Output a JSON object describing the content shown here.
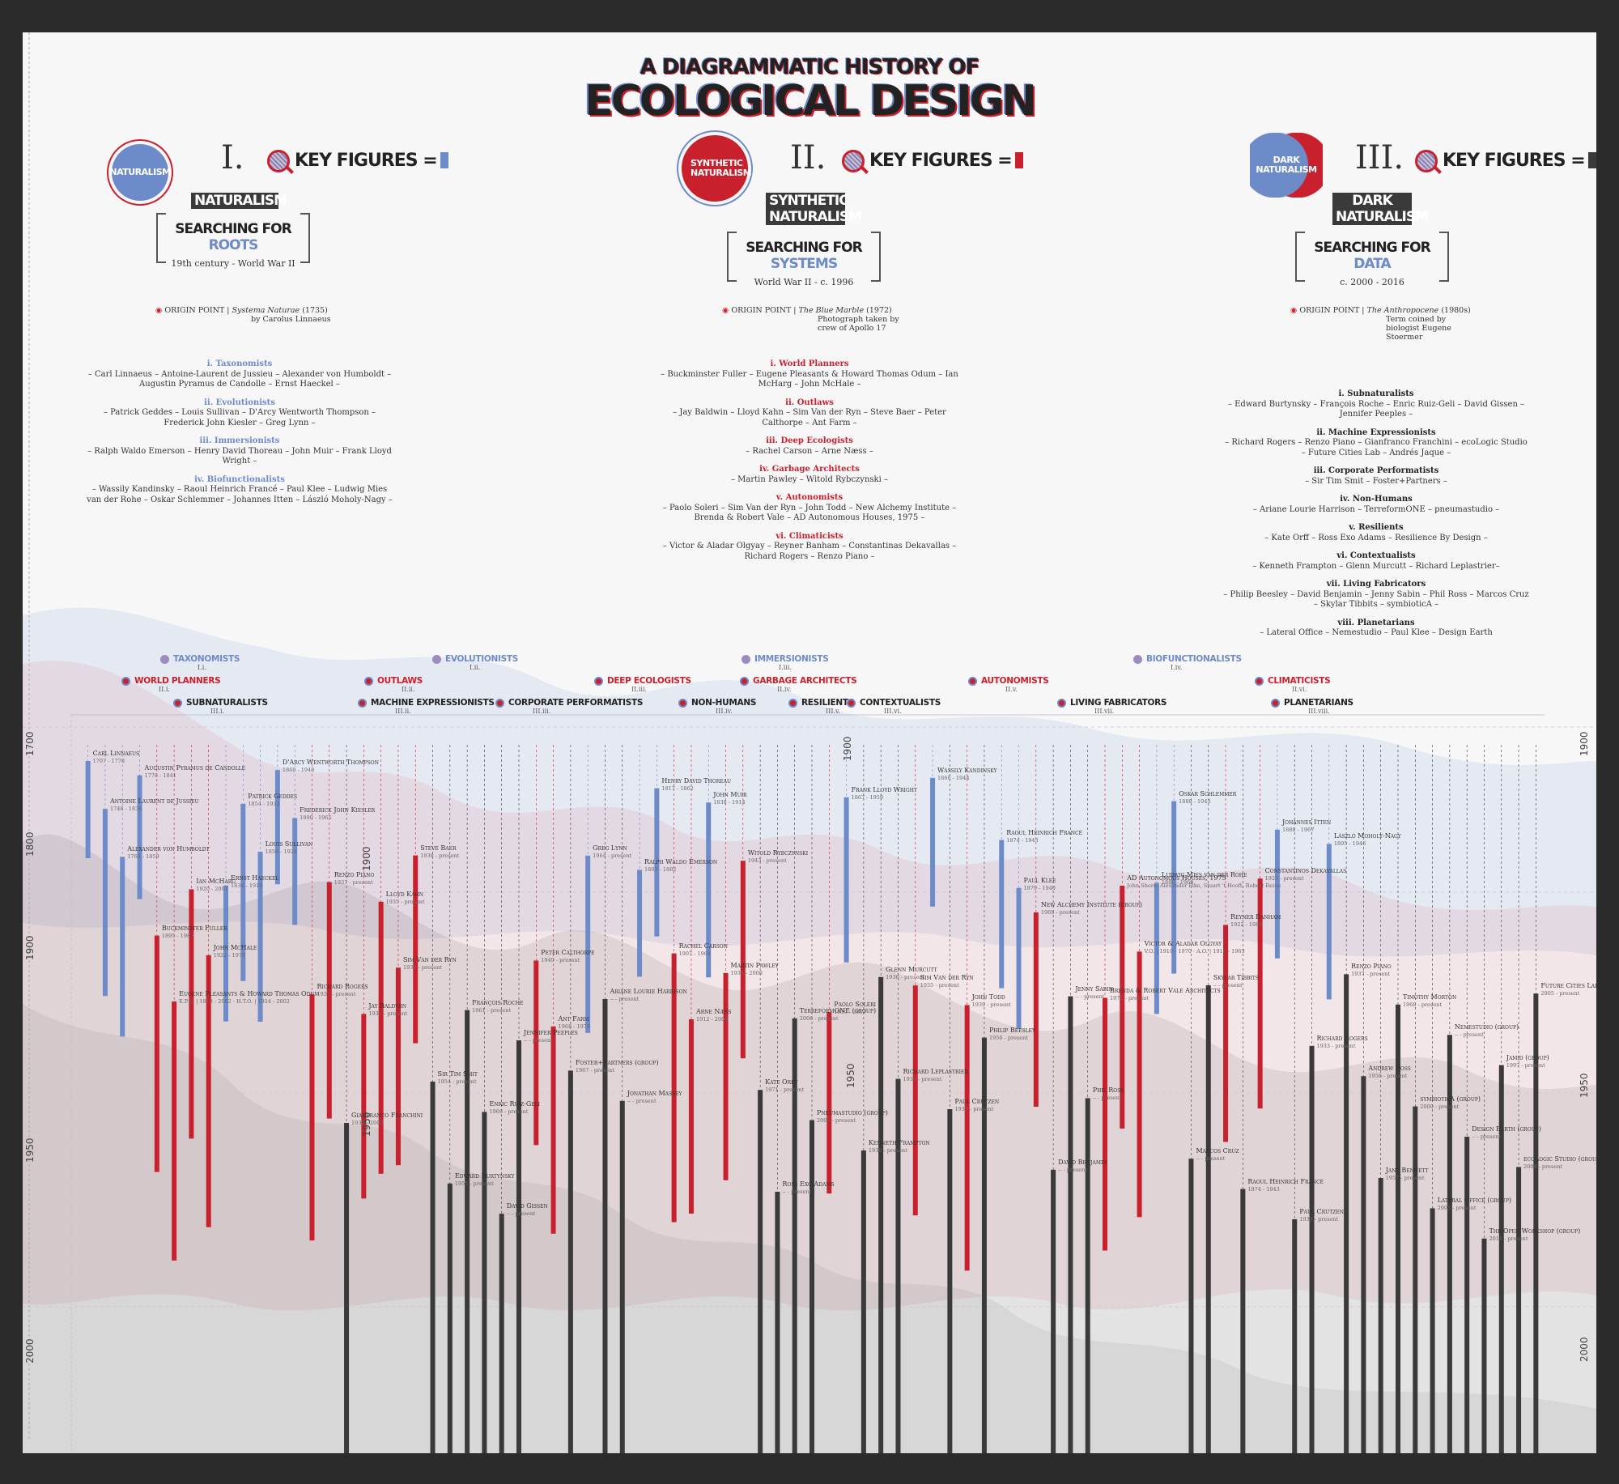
{
  "title": {
    "line1": "A DIAGRAMMATIC HISTORY OF",
    "line2": "ECOLOGICAL DESIGN"
  },
  "colors": {
    "blue": "#6e8bc9",
    "red": "#c9202e",
    "dark": "#3a3a3a",
    "bg": "#f7f7f8"
  },
  "eras": [
    {
      "numeral": "I.",
      "emblem": "NATURALISM",
      "key_figures": "KEY FIGURES =",
      "name_lines": [
        "NATURALISM"
      ],
      "search_prefix": "SEARCHING FOR ",
      "search_word": "ROOTS",
      "dates": "19th century - World War II",
      "origin_label": "ORIGIN POINT",
      "origin_work": "Systema Naturae",
      "origin_rest": "(1735)",
      "origin_detail": "by Carolus Linnaeus",
      "categories": [
        {
          "title": "i. Taxonomists",
          "members": "– Carl Linnaeus – Antoine-Laurent de Jussieu – Alexander von Humboldt – Augustin Pyramus de Candolle – Ernst Haeckel –"
        },
        {
          "title": "ii. Evolutionists",
          "members": "– Patrick Geddes – Louis Sullivan – D'Arcy Wentworth Thompson – Frederick John Kiesler – Greg Lynn –"
        },
        {
          "title": "iii. Immersionists",
          "members": "– Ralph Waldo Emerson – Henry David Thoreau – John Muir – Frank Lloyd Wright –"
        },
        {
          "title": "iv. Biofunctionalists",
          "members": "– Wassily Kandinsky – Raoul Heinrich Francé – Paul Klee – Ludwig Mies van der Rohe – Oskar Schlemmer – Johannes Itten – László Moholy-Nagy –"
        }
      ]
    },
    {
      "numeral": "II.",
      "emblem": "SYNTHETIC NATURALISM",
      "key_figures": "KEY FIGURES =",
      "name_lines": [
        "SYNTHETIC",
        "NATURALISM"
      ],
      "search_prefix": "SEARCHING FOR ",
      "search_word": "SYSTEMS",
      "dates": "World War II - c. 1996",
      "origin_label": "ORIGIN POINT",
      "origin_work": "The Blue Marble",
      "origin_rest": "(1972)",
      "origin_detail": "Photograph taken by crew of Apollo 17",
      "categories": [
        {
          "title": "i. World Planners",
          "members": "– Buckminster Fuller – Eugene Pleasants & Howard Thomas Odum – Ian McHarg – John McHale –"
        },
        {
          "title": "ii. Outlaws",
          "members": "– Jay Baldwin – Lloyd Kahn – Sim Van der Ryn – Steve Baer – Peter Calthorpe – Ant Farm –"
        },
        {
          "title": "iii. Deep Ecologists",
          "members": "– Rachel Carson – Arne Næss –"
        },
        {
          "title": "iv. Garbage Architects",
          "members": "– Martin Pawley – Witold Rybczynski –"
        },
        {
          "title": "v. Autonomists",
          "members": "– Paolo Soleri – Sim Van der Ryn – John Todd – New Alchemy Institute – Brenda & Robert Vale – AD Autonomous Houses, 1975 –"
        },
        {
          "title": "vi. Climaticists",
          "members": "– Victor & Aladar Olgyay – Reyner Banham – Constantinas Dekavallas – Richard Rogers – Renzo Piano –"
        }
      ]
    },
    {
      "numeral": "III.",
      "emblem": "DARK NATURALISM",
      "key_figures": "KEY FIGURES =",
      "name_lines": [
        "DARK",
        "NATURALISM"
      ],
      "search_prefix": "SEARCHING FOR ",
      "search_word": "DATA",
      "dates": "c. 2000 - 2016",
      "origin_label": "ORIGIN POINT",
      "origin_work": "The Anthropocene",
      "origin_rest": "(1980s)",
      "origin_detail": "Term coined by biologist Eugene Stoermer",
      "categories": [
        {
          "title": "i. Subnaturalists",
          "members": "– Edward Burtynsky – François Roche – Enric Ruiz-Geli – David Gissen – Jennifer Peeples –"
        },
        {
          "title": "ii. Machine Expressionists",
          "members": "– Richard Rogers – Renzo Piano – Gianfranco Franchini – ecoLogic Studio – Future Cities Lab – Andrés Jaque –"
        },
        {
          "title": "iii. Corporate Performatists",
          "members": "– Sir Tim Smit – Foster+Partners –"
        },
        {
          "title": "iv. Non-Humans",
          "members": "– Ariane Lourie Harrison – TerreformONE – pneumastudio –"
        },
        {
          "title": "v. Resilients",
          "members": "– Kate Orff – Ross Exo Adams – Resilience By Design –"
        },
        {
          "title": "vi. Contextualists",
          "members": "– Kenneth Frampton – Glenn Murcutt – Richard Leplastrier–"
        },
        {
          "title": "vii. Living Fabricators",
          "members": "– Philip Beesley – David Benjamin – Jenny Sabin – Phil Ross – Marcos Cruz – Skylar Tibbits – symbioticA –"
        },
        {
          "title": "viii. Planetarians",
          "members": "– Lateral Office – Nemestudio – Paul Klee – Design Earth"
        }
      ]
    }
  ],
  "annotation_labels": [
    {
      "label": "TAXONOMISTS",
      "sub": "I.i.",
      "era": 1
    },
    {
      "label": "EVOLUTIONISTS",
      "sub": "I.ii.",
      "era": 1
    },
    {
      "label": "IMMERSIONISTS",
      "sub": "I.iii.",
      "era": 1
    },
    {
      "label": "BIOFUNCTIONALISTS",
      "sub": "I.iv.",
      "era": 1
    },
    {
      "label": "WORLD PLANNERS",
      "sub": "II.i.",
      "era": 2
    },
    {
      "label": "OUTLAWS",
      "sub": "II.ii.",
      "era": 2
    },
    {
      "label": "DEEP ECOLOGISTS",
      "sub": "II.iii.",
      "era": 2
    },
    {
      "label": "GARBAGE ARCHITECTS",
      "sub": "II.iv.",
      "era": 2
    },
    {
      "label": "AUTONOMISTS",
      "sub": "II.v.",
      "era": 2
    },
    {
      "label": "CLIMATICISTS",
      "sub": "II.vi.",
      "era": 2
    },
    {
      "label": "SUBNATURALISTS",
      "sub": "III.i.",
      "era": 3
    },
    {
      "label": "MACHINE EXPRESSIONISTS",
      "sub": "III.ii.",
      "era": 3
    },
    {
      "label": "CORPORATE PERFORMATISTS",
      "sub": "III.iii.",
      "era": 3
    },
    {
      "label": "NON-HUMANS",
      "sub": "III.iv.",
      "era": 3
    },
    {
      "label": "RESILIENTS",
      "sub": "III.v.",
      "era": 3
    },
    {
      "label": "CONTEXTUALISTS",
      "sub": "III.vi.",
      "era": 3
    },
    {
      "label": "LIVING FABRICATORS",
      "sub": "III.vii.",
      "era": 3
    },
    {
      "label": "PLANETARIANS",
      "sub": "III.viii.",
      "era": 3
    }
  ],
  "axis_years": {
    "left": [
      "1700",
      "1800",
      "1900",
      "1950",
      "2000"
    ],
    "right": [
      "1900",
      "1950",
      "2000"
    ],
    "inner": [
      "1900",
      "1900",
      "1950",
      "1950"
    ]
  },
  "figures": [
    {
      "name": "Carl Linnaeus",
      "dates": "1707 - 1778",
      "era": 1
    },
    {
      "name": "Antoine Laurent de Jussieu",
      "dates": "1748 - 1836",
      "era": 1
    },
    {
      "name": "Alexander von Humboldt",
      "dates": "1769 - 1859",
      "era": 1
    },
    {
      "name": "Augustin Pyramus de Candolle",
      "dates": "1778 - 1841",
      "era": 1
    },
    {
      "name": "Buckminster Fuller",
      "dates": "1895 - 1983",
      "era": 2
    },
    {
      "name": "Eugene Pleasants & Howard Thomas Odum",
      "dates": "E.P.O. | 1913 - 2002 · H.T.O. | 1924 - 2002",
      "era": 2
    },
    {
      "name": "Ian McHarg",
      "dates": "1920 - 2001",
      "era": 2
    },
    {
      "name": "John McHale",
      "dates": "1922 - 1978",
      "era": 2
    },
    {
      "name": "Ernst Haeckel",
      "dates": "1834 - 1919",
      "era": 1
    },
    {
      "name": "Patrick Geddes",
      "dates": "1854 - 1932",
      "era": 1
    },
    {
      "name": "Louis Sullivan",
      "dates": "1856 - 1924",
      "era": 1
    },
    {
      "name": "D'Arcy Wentworth Thompson",
      "dates": "1860 - 1948",
      "era": 1
    },
    {
      "name": "Frederick John Kiesler",
      "dates": "1890 - 1965",
      "era": 1
    },
    {
      "name": "Richard Rogers",
      "dates": "1933 - present",
      "era": 2
    },
    {
      "name": "Renzo Piano",
      "dates": "1937 - present",
      "era": 2
    },
    {
      "name": "Gianfranco Franchini",
      "dates": "1938 - 2009",
      "era": 3
    },
    {
      "name": "Jay Baldwin",
      "dates": "1933 - present",
      "era": 2
    },
    {
      "name": "Lloyd Kahn",
      "dates": "1935 - present",
      "era": 2
    },
    {
      "name": "Sim Van der Ryn",
      "dates": "1935 - present",
      "era": 2
    },
    {
      "name": "Steve Baer",
      "dates": "1938 - present",
      "era": 2
    },
    {
      "name": "Sir Tim Smit",
      "dates": "1954 - present",
      "era": 3
    },
    {
      "name": "Edward Burtynsky",
      "dates": "1955 - present",
      "era": 3
    },
    {
      "name": "François Roche",
      "dates": "1961 - present",
      "era": 3
    },
    {
      "name": "Enric Ruiz-Geli",
      "dates": "1968 - present",
      "era": 3
    },
    {
      "name": "David Gissen",
      "dates": "-- - present",
      "era": 3
    },
    {
      "name": "Jennifer Peeples",
      "dates": "-- - present",
      "era": 3
    },
    {
      "name": "Peter Calthorpe",
      "dates": "1949 - present",
      "era": 2
    },
    {
      "name": "Ant Farm",
      "dates": "1968 - 1978",
      "era": 2
    },
    {
      "name": "Foster+Partners (group)",
      "dates": "1967 - present",
      "era": 3
    },
    {
      "name": "Greg Lynn",
      "dates": "1964 - present",
      "era": 1
    },
    {
      "name": "Ariane Lourie Harrison",
      "dates": "-- - present",
      "era": 3
    },
    {
      "name": "Jonathan Massey",
      "dates": "-- - present",
      "era": 3
    },
    {
      "name": "Ralph Waldo Emerson",
      "dates": "1803 - 1882",
      "era": 1
    },
    {
      "name": "Henry David Thoreau",
      "dates": "1817 - 1862",
      "era": 1
    },
    {
      "name": "Rachel Carson",
      "dates": "1907 - 1964",
      "era": 2
    },
    {
      "name": "Arne Næss",
      "dates": "1912 - 2009",
      "era": 2
    },
    {
      "name": "John Muir",
      "dates": "1838 - 1914",
      "era": 1
    },
    {
      "name": "Martin Pawley",
      "dates": "1938 - 2008",
      "era": 2
    },
    {
      "name": "Witold Rybczynski",
      "dates": "1943 - present",
      "era": 2
    },
    {
      "name": "Kate Orff",
      "dates": "1971 - present",
      "era": 3
    },
    {
      "name": "Ross Exo Adams",
      "dates": "-- - present",
      "era": 3
    },
    {
      "name": "TerreformONE (group)",
      "dates": "2006 - present",
      "era": 3
    },
    {
      "name": "Pneumastudio (group)",
      "dates": "2000 - present",
      "era": 3
    },
    {
      "name": "Paolo Soleri",
      "dates": "1919 - 2013",
      "era": 2
    },
    {
      "name": "Frank Lloyd Wright",
      "dates": "1867 - 1959",
      "era": 1
    },
    {
      "name": "Kenneth Frampton",
      "dates": "1930 - present",
      "era": 3
    },
    {
      "name": "Glenn Murcutt",
      "dates": "1936 - present",
      "era": 3
    },
    {
      "name": "Richard Leplastrier",
      "dates": "1939 - present",
      "era": 3
    },
    {
      "name": "Sim Van der Ryn",
      "dates": "1935 - present",
      "era": 2
    },
    {
      "name": "Wassily Kandinsky",
      "dates": "1866 - 1944",
      "era": 1
    },
    {
      "name": "Paul Crutzen",
      "dates": "1933 - present",
      "era": 3
    },
    {
      "name": "John Todd",
      "dates": "1939 - present",
      "era": 2
    },
    {
      "name": "Philip Beesley",
      "dates": "1956 - present",
      "era": 3
    },
    {
      "name": "Raoul Heinrich Francé",
      "dates": "1874 - 1943",
      "era": 1
    },
    {
      "name": "Paul Klee",
      "dates": "1879 - 1940",
      "era": 1
    },
    {
      "name": "New Alchemy Institute (group)",
      "dates": "1969 - present",
      "era": 2
    },
    {
      "name": "David Benjamin",
      "dates": "-- - present",
      "era": 3
    },
    {
      "name": "Jenny Sabin",
      "dates": "-- - present",
      "era": 3
    },
    {
      "name": "Phil Ross",
      "dates": "-- - present",
      "era": 3
    },
    {
      "name": "Brenda & Robert Vale Architects",
      "dates": "1975 - present",
      "era": 2
    },
    {
      "name": "AD Autonomous Houses, 1975",
      "dates": "John Shore, Alexander Pike, Stuart 't Hooft, Robert Reine",
      "era": 2
    },
    {
      "name": "Victor & Aladar Olgyay",
      "dates": "V.O. | 1910 - 1970 · A.O. | 1910 - 1963",
      "era": 2
    },
    {
      "name": "Ludwig Mies van der Rohe",
      "dates": "1886 - 1969",
      "era": 1
    },
    {
      "name": "Oskar Schlemmer",
      "dates": "1888 - 1943",
      "era": 1
    },
    {
      "name": "Marcos Cruz",
      "dates": "-- - present",
      "era": 3
    },
    {
      "name": "Skylar Tibbits",
      "dates": "-- - present",
      "era": 3
    },
    {
      "name": "Reyner Banham",
      "dates": "1922 - 1988",
      "era": 2
    },
    {
      "name": "Raoul Heinrich Francé",
      "dates": "1874 - 1943",
      "era": 3
    },
    {
      "name": "Constantinos Dekavallas",
      "dates": "1925 - present",
      "era": 2
    },
    {
      "name": "Johannes Itten",
      "dates": "1888 - 1967",
      "era": 1
    },
    {
      "name": "Paul Crutzen",
      "dates": "1933 - present",
      "era": 3
    },
    {
      "name": "Richard Rogers",
      "dates": "1933 - present",
      "era": 3
    },
    {
      "name": "László Moholy-Nagy",
      "dates": "1895 - 1946",
      "era": 1
    },
    {
      "name": "Renzo Piano",
      "dates": "1937 - present",
      "era": 3
    },
    {
      "name": "Andrew Ross",
      "dates": "1956 - present",
      "era": 3
    },
    {
      "name": "Jane Bennett",
      "dates": "1957 - present",
      "era": 3
    },
    {
      "name": "Timothy Morton",
      "dates": "1968 - present",
      "era": 3
    },
    {
      "name": "symbioticA (group)",
      "dates": "2000 - present",
      "era": 3
    },
    {
      "name": "Lateral Office (group)",
      "dates": "2003 - present",
      "era": 3
    },
    {
      "name": "Nemestudio (group)",
      "dates": "-- - present",
      "era": 3
    },
    {
      "name": "Design Earth (group)",
      "dates": "-- - present",
      "era": 3
    },
    {
      "name": "The Open Workshop (group)",
      "dates": "2011 - present",
      "era": 3
    },
    {
      "name": "Jamid (group)",
      "dates": "1997 - present",
      "era": 3
    },
    {
      "name": "ecoLogic Studio (group)",
      "dates": "2004 - present",
      "era": 3
    },
    {
      "name": "Future Cities Lab (group)",
      "dates": "2005 - present",
      "era": 3
    }
  ]
}
